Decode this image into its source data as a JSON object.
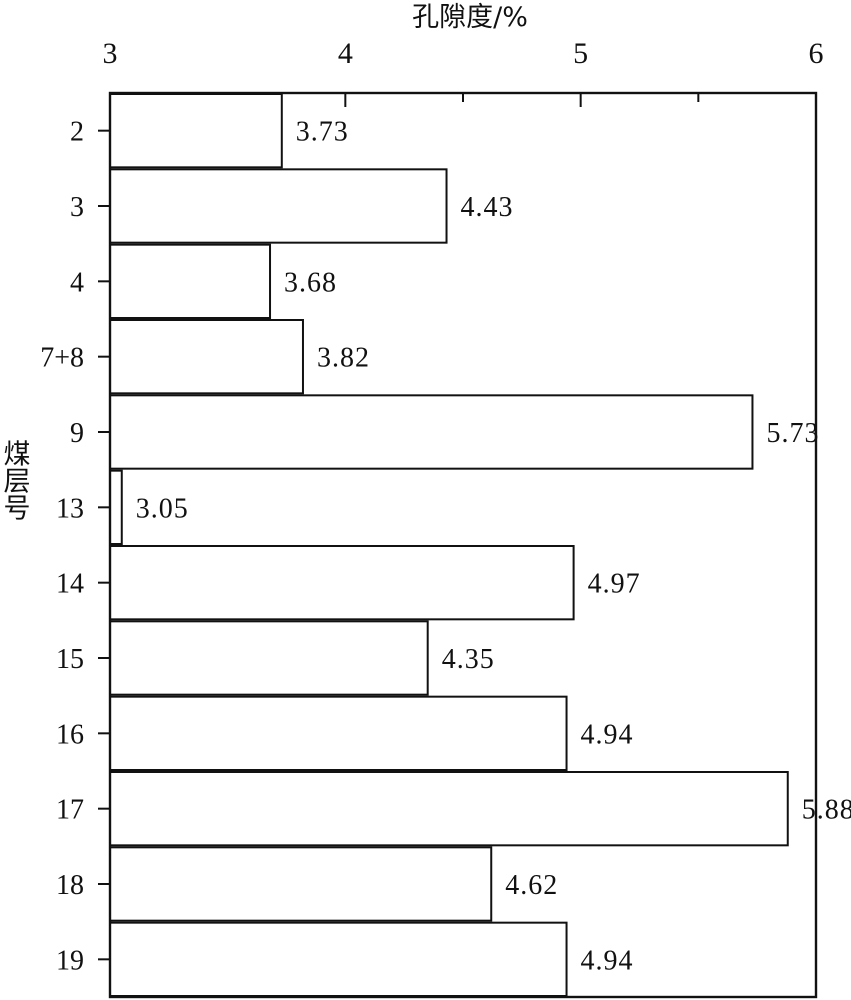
{
  "chart_data": {
    "type": "bar",
    "orientation": "horizontal",
    "xlabel": "孔隙度/%",
    "ylabel": "煤层号",
    "xlim": [
      3,
      6
    ],
    "x_ticks": [
      3,
      4,
      5,
      6
    ],
    "x_tick_labels": [
      "3",
      "4",
      "5",
      "6"
    ],
    "x_minor_ticks": [
      3.5,
      4.5,
      5.5
    ],
    "x_axis_position": "top",
    "grid": false,
    "categories": [
      "2",
      "3",
      "4",
      "7+8",
      "9",
      "13",
      "14",
      "15",
      "16",
      "17",
      "18",
      "19"
    ],
    "values": [
      3.73,
      4.43,
      3.68,
      3.82,
      5.73,
      3.05,
      4.97,
      4.35,
      4.94,
      5.88,
      4.62,
      4.94
    ],
    "value_labels": [
      "3.73",
      "4.43",
      "3.68",
      "3.82",
      "5.73",
      "3.05",
      "4.97",
      "4.35",
      "4.94",
      "5.88",
      "4.62",
      "4.94"
    ],
    "colors": {
      "bar_fill": "#ffffff",
      "stroke": "#111111"
    }
  }
}
